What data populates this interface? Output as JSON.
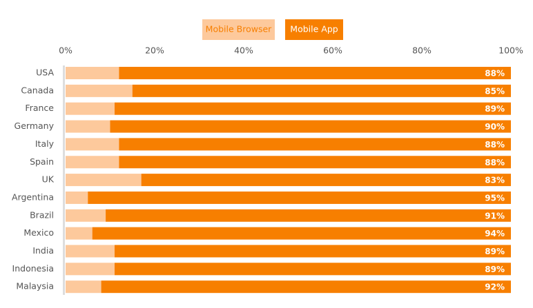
{
  "chart_data": {
    "type": "stacked-bar-horizontal",
    "categories": [
      "USA",
      "Canada",
      "France",
      "Germany",
      "Italy",
      "Spain",
      "UK",
      "Argentina",
      "Brazil",
      "Mexico",
      "India",
      "Indonesia",
      "Malaysia"
    ],
    "series": [
      {
        "name": "Mobile Browser",
        "color": "#fdc99c",
        "values": [
          12,
          15,
          11,
          10,
          12,
          12,
          17,
          5,
          9,
          6,
          11,
          11,
          8
        ]
      },
      {
        "name": "Mobile App",
        "color": "#f77f00",
        "values": [
          88,
          85,
          89,
          90,
          88,
          88,
          83,
          95,
          91,
          94,
          89,
          89,
          92
        ],
        "value_labels": [
          "88%",
          "85%",
          "89%",
          "90%",
          "88%",
          "88%",
          "83%",
          "95%",
          "91%",
          "94%",
          "89%",
          "89%",
          "92%"
        ]
      }
    ],
    "xlim": [
      0,
      100
    ],
    "xticks": [
      {
        "value": 0,
        "label": "0%"
      },
      {
        "value": 20,
        "label": "20%"
      },
      {
        "value": 40,
        "label": "40%"
      },
      {
        "value": 60,
        "label": "60%"
      },
      {
        "value": 80,
        "label": "80%"
      },
      {
        "value": 100,
        "label": "100%"
      }
    ],
    "legend": "top"
  }
}
